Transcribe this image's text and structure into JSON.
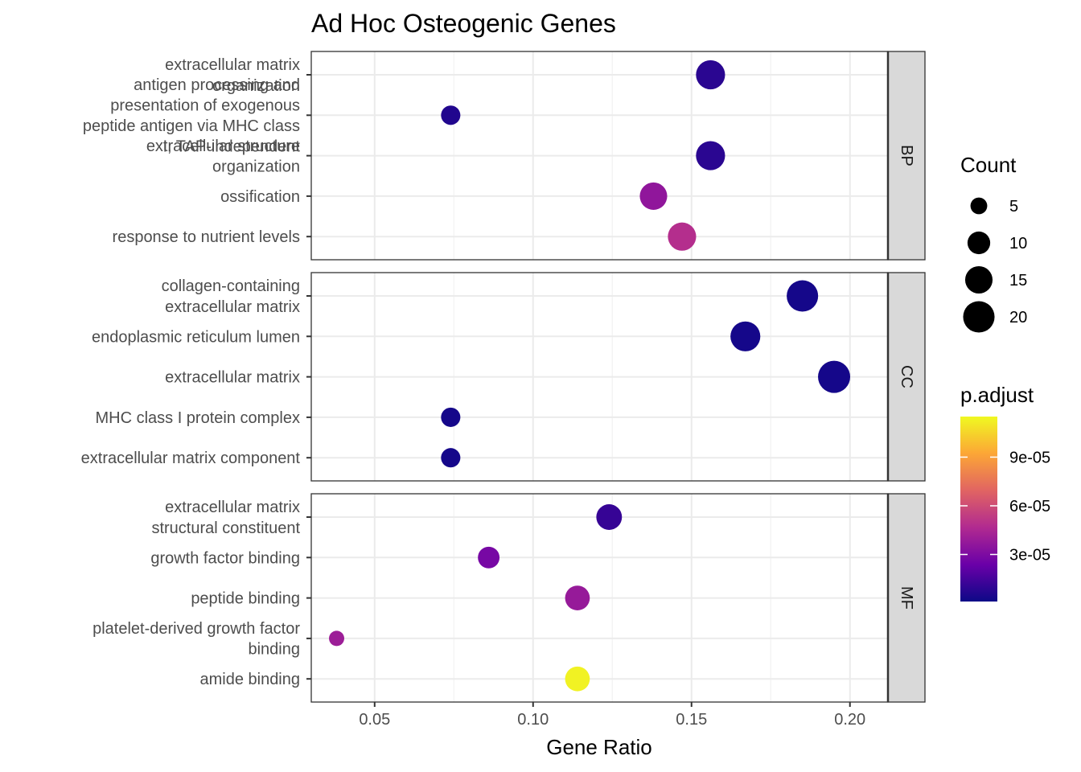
{
  "chart_data": {
    "type": "scatter",
    "title": "Ad Hoc Osteogenic Genes",
    "xlabel": "Gene Ratio",
    "xlim": [
      0.03,
      0.212
    ],
    "xticks": [
      "0.05",
      "0.10",
      "0.15",
      "0.20"
    ],
    "xtick_values": [
      0.05,
      0.1,
      0.15,
      0.2
    ],
    "grid": true,
    "legend_placement": "right",
    "facets": [
      {
        "name": "BP",
        "terms": [
          {
            "label": [
              "extracellular matrix",
              "organization"
            ],
            "x": 0.156,
            "count": 17,
            "p_adjust": 8e-06
          },
          {
            "label": [
              "antigen processing and",
              "presentation of exogenous",
              "peptide antigen via MHC class",
              "I, TAP-independent"
            ],
            "x": 0.074,
            "count": 7,
            "p_adjust": 6e-06
          },
          {
            "label": [
              "extracellular structure",
              "organization"
            ],
            "x": 0.156,
            "count": 17,
            "p_adjust": 8e-06
          },
          {
            "label": [
              "ossification"
            ],
            "x": 0.138,
            "count": 15,
            "p_adjust": 3.6e-05
          },
          {
            "label": [
              "response to nutrient levels"
            ],
            "x": 0.147,
            "count": 16,
            "p_adjust": 4.8e-05
          }
        ]
      },
      {
        "name": "CC",
        "terms": [
          {
            "label": [
              "collagen-containing",
              "extracellular matrix"
            ],
            "x": 0.185,
            "count": 20,
            "p_adjust": 3e-06
          },
          {
            "label": [
              "endoplasmic reticulum lumen"
            ],
            "x": 0.167,
            "count": 18,
            "p_adjust": 3e-06
          },
          {
            "label": [
              "extracellular matrix"
            ],
            "x": 0.195,
            "count": 21,
            "p_adjust": 3e-06
          },
          {
            "label": [
              "MHC class I protein complex"
            ],
            "x": 0.074,
            "count": 7,
            "p_adjust": 3e-06
          },
          {
            "label": [
              "extracellular matrix component"
            ],
            "x": 0.074,
            "count": 7,
            "p_adjust": 3e-06
          }
        ]
      },
      {
        "name": "MF",
        "terms": [
          {
            "label": [
              "extracellular matrix",
              "structural constituent"
            ],
            "x": 0.124,
            "count": 13,
            "p_adjust": 1.1e-05
          },
          {
            "label": [
              "growth factor binding"
            ],
            "x": 0.086,
            "count": 9,
            "p_adjust": 2.8e-05
          },
          {
            "label": [
              "peptide binding"
            ],
            "x": 0.114,
            "count": 12,
            "p_adjust": 3.8e-05
          },
          {
            "label": [
              "platelet-derived growth factor",
              "binding"
            ],
            "x": 0.038,
            "count": 4,
            "p_adjust": 4e-05
          },
          {
            "label": [
              "amide binding"
            ],
            "x": 0.114,
            "count": 12,
            "p_adjust": 0.000113
          }
        ]
      }
    ],
    "size_legend": {
      "title": "Count",
      "entries": [
        {
          "label": "5",
          "value": 5
        },
        {
          "label": "10",
          "value": 10
        },
        {
          "label": "15",
          "value": 15
        },
        {
          "label": "20",
          "value": 20
        }
      ]
    },
    "color_legend": {
      "title": "p.adjust",
      "range": [
        1e-06,
        0.000115
      ],
      "ticks": [
        {
          "label": "3e-05",
          "value": 3e-05
        },
        {
          "label": "6e-05",
          "value": 6e-05
        },
        {
          "label": "9e-05",
          "value": 9e-05
        }
      ],
      "colors": [
        "#0d0887",
        "#6a00a8",
        "#b12a90",
        "#e16462",
        "#fca636",
        "#f0f921"
      ]
    }
  }
}
